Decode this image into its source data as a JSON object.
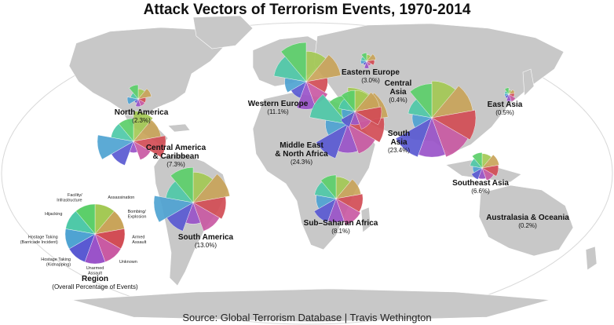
{
  "title": "Attack Vectors of Terrorism Events, 1970-2014",
  "source": "Source: Global Terrorism Database | Travis Wethington",
  "colors": {
    "ocean": "#ffffff",
    "land": "#c8c8c8",
    "Bombing/Explosion": "#c9a45a",
    "Armed Assault": "#d24d55",
    "Unknown": "#c95aa3",
    "Unarmed Assault": "#9a53c9",
    "Hostage Taking (Kidnapping)": "#5a5ad2",
    "Hostage Taking (Barricade Incident)": "#4fa3d2",
    "Hijacking": "#4fc9a8",
    "Facility/Infrastructure": "#5ccf6a",
    "Assassination": "#a4c955"
  },
  "legend": {
    "categories": [
      {
        "key": "Bombing/Explosion",
        "lines": [
          "Bombing/",
          "Explosion"
        ]
      },
      {
        "key": "Assassination",
        "lines": [
          "Assassination"
        ]
      },
      {
        "key": "Armed Assault",
        "lines": [
          "Armed",
          "Assault"
        ]
      },
      {
        "key": "Unknown",
        "lines": [
          "Unknown"
        ]
      },
      {
        "key": "Unarmed Assault",
        "lines": [
          "Unarmed",
          "Assault"
        ]
      },
      {
        "key": "Hostage Taking (Kidnapping)",
        "lines": [
          "Hostage Taking",
          "(Kidnapping)"
        ]
      },
      {
        "key": "Hostage Taking (Barricade Incident)",
        "lines": [
          "Hostage Taking",
          "(Barricade Incident)"
        ]
      },
      {
        "key": "Hijacking",
        "lines": [
          "Hijacking"
        ]
      },
      {
        "key": "Facility/Infrastructure",
        "lines": [
          "Facility/",
          "Infrastructure"
        ]
      }
    ],
    "heading": "Region",
    "subheading": "(Overall Percentage of Events)"
  },
  "chart_data": {
    "type": "map",
    "subtype": "polar-area glyphs per region",
    "slice_order": [
      "Assassination",
      "Bombing/Explosion",
      "Armed Assault",
      "Unknown",
      "Unarmed Assault",
      "Hostage Taking (Kidnapping)",
      "Hostage Taking (Barricade Incident)",
      "Hijacking",
      "Facility/Infrastructure"
    ],
    "regions": [
      {
        "name": "North America",
        "pct_label": "(2.3%)",
        "share": 2.3,
        "values": [
          0.5,
          0.9,
          0.3,
          0.3,
          0.3,
          0.1,
          0.6,
          0.3,
          1.0
        ]
      },
      {
        "name": "Central America & Caribbean",
        "pct_label": "(7.3%)",
        "share": 7.3,
        "values": [
          0.7,
          0.6,
          0.8,
          0.3,
          0.1,
          0.5,
          1.0,
          0.4,
          0.4
        ]
      },
      {
        "name": "South America",
        "pct_label": "(13.0%)",
        "share": 13.0,
        "values": [
          0.6,
          0.9,
          0.7,
          0.6,
          0.3,
          0.6,
          1.0,
          0.5,
          0.8
        ]
      },
      {
        "name": "Western Europe",
        "pct_label": "(11.1%)",
        "share": 11.1,
        "values": [
          0.6,
          0.8,
          0.3,
          0.4,
          0.5,
          0.2,
          0.3,
          0.7,
          1.0
        ]
      },
      {
        "name": "Eastern Europe",
        "pct_label": "(3.0%)",
        "share": 3.0,
        "values": [
          0.5,
          1.0,
          0.7,
          0.3,
          0.6,
          0.2,
          0.4,
          0.4,
          0.8
        ]
      },
      {
        "name": "Middle East & North Africa",
        "pct_label": "(24.3%)",
        "share": 24.3,
        "values": [
          0.8,
          1.0,
          0.8,
          0.6,
          0.5,
          0.8,
          0.3,
          0.9,
          0.5
        ]
      },
      {
        "name": "Central Asia",
        "pct_label": "(0.4%)",
        "share": 0.4,
        "values": [
          0.5,
          0.7,
          0.8,
          0.4,
          0.2,
          0.3,
          0.2,
          0.3,
          0.5
        ]
      },
      {
        "name": "South Asia",
        "pct_label": "(23.4%)",
        "share": 23.4,
        "values": [
          0.7,
          0.9,
          1.0,
          0.9,
          0.8,
          0.9,
          0.2,
          0.3,
          0.6
        ]
      },
      {
        "name": "East Asia",
        "pct_label": "(0.5%)",
        "share": 0.5,
        "values": [
          0.3,
          0.6,
          0.5,
          1.0,
          0.8,
          0.3,
          0.3,
          0.3,
          0.7
        ]
      },
      {
        "name": "Southeast Asia",
        "pct_label": "(6.6%)",
        "share": 6.6,
        "values": [
          0.7,
          1.0,
          0.9,
          0.6,
          0.4,
          0.5,
          0.3,
          0.5,
          0.8
        ]
      },
      {
        "name": "Sub-Saharan Africa",
        "pct_label": "(8.1%)",
        "share": 8.1,
        "values": [
          0.6,
          0.8,
          0.9,
          1.0,
          0.7,
          0.8,
          0.5,
          0.6,
          0.7
        ]
      },
      {
        "name": "Australasia & Oceania",
        "pct_label": "(0.2%)",
        "share": 0.2,
        "values": null
      }
    ]
  }
}
